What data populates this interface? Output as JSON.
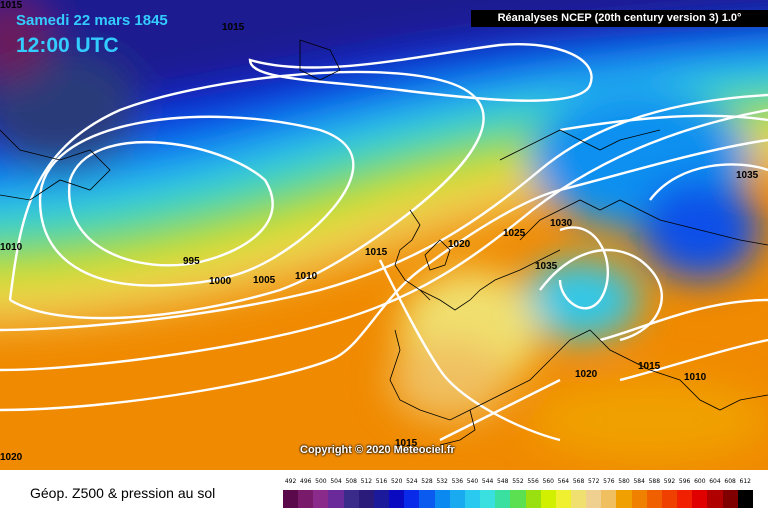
{
  "header": {
    "date": "Samedi 22 mars 1845",
    "time": "12:00 UTC",
    "source": "Réanalyses NCEP (20th century version 3) 1.0°"
  },
  "copyright": "Copyright © 2020 Meteociel.fr",
  "footer": {
    "title": "Géop. Z500 & pression au sol"
  },
  "isobar_labels": [
    "1015",
    "1035",
    "1030",
    "1025",
    "1020",
    "1035",
    "1015",
    "995",
    "1000",
    "1005",
    "1010",
    "1020",
    "1015",
    "1010",
    "1010",
    "1015",
    "1020",
    "1015"
  ],
  "scale": {
    "values": [
      "492",
      "496",
      "500",
      "504",
      "508",
      "512",
      "516",
      "520",
      "524",
      "528",
      "532",
      "536",
      "540",
      "544",
      "548",
      "552",
      "556",
      "560",
      "564",
      "568",
      "572",
      "576",
      "580",
      "584",
      "588",
      "592",
      "596",
      "600",
      "604",
      "608",
      "612"
    ],
    "colors": [
      "#5a0a4a",
      "#7a1a6a",
      "#8a2a8a",
      "#6a2a9a",
      "#3a2a8a",
      "#2a1a7a",
      "#1a1a9a",
      "#0a0ac0",
      "#0a2aea",
      "#0a5af0",
      "#0a8af0",
      "#1aaaf0",
      "#2acaf0",
      "#3ae0e0",
      "#3ae0a0",
      "#5ae050",
      "#9ae010",
      "#d0f000",
      "#f0f030",
      "#f0e070",
      "#f0d090",
      "#f0c060",
      "#f0a000",
      "#f08000",
      "#f06000",
      "#f04000",
      "#f02000",
      "#e00000",
      "#b00000",
      "#800000",
      "#000000"
    ]
  }
}
